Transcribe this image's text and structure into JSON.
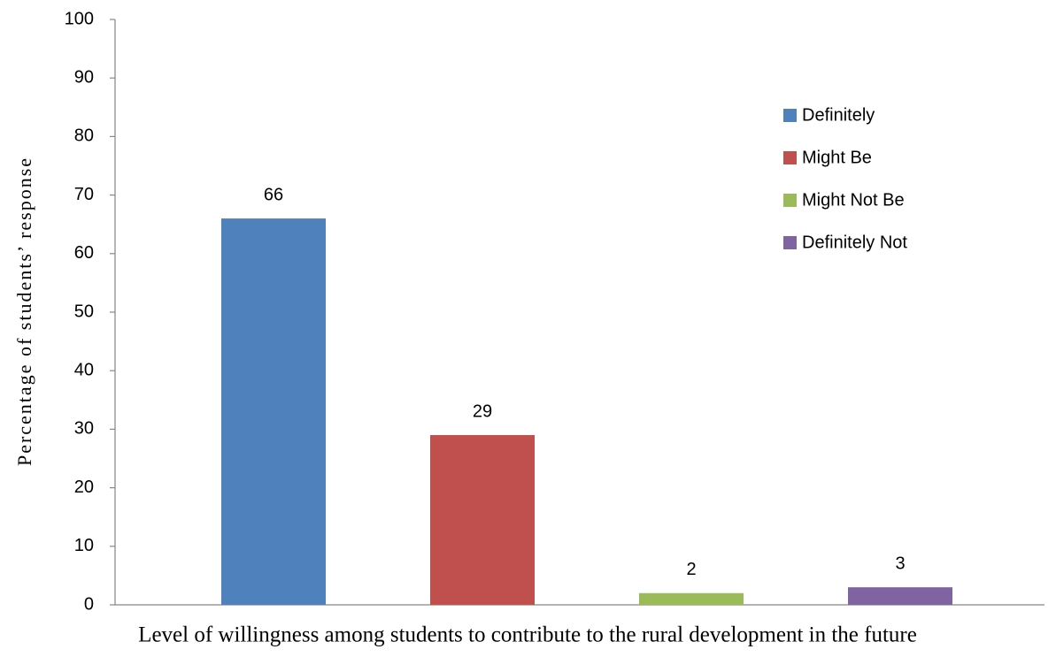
{
  "chart_data": {
    "type": "bar",
    "x_label": "Level of willingness among students to contribute to the rural development in the future",
    "y_label": "Percentage of students’ response",
    "categories": [
      null
    ],
    "series": [
      {
        "name": "Definitely",
        "color": "#4f81bd",
        "values": [
          66
        ]
      },
      {
        "name": "Might Be",
        "color": "#c0504d",
        "values": [
          29
        ]
      },
      {
        "name": "Might Not Be",
        "color": "#9bbb59",
        "values": [
          2
        ]
      },
      {
        "name": "Definitely Not",
        "color": "#8064a2",
        "values": [
          3
        ]
      }
    ],
    "ylim": [
      0,
      100
    ],
    "yticks": [
      0,
      10,
      20,
      30,
      40,
      50,
      60,
      70,
      80,
      90,
      100
    ],
    "grid": false,
    "legend": "upper right"
  }
}
